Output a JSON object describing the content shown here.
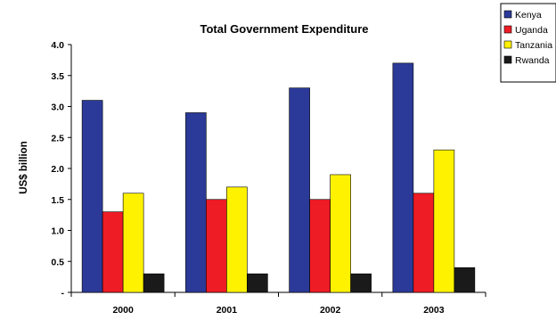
{
  "chart_data": {
    "type": "bar",
    "title": "Total Government Expenditure",
    "xlabel": "",
    "ylabel": "US$ billion",
    "categories": [
      "2000",
      "2001",
      "2002",
      "2003"
    ],
    "series": [
      {
        "name": "Kenya",
        "values": [
          3.1,
          2.9,
          3.3,
          3.7
        ],
        "color": "#2B3A98"
      },
      {
        "name": "Uganda",
        "values": [
          1.3,
          1.5,
          1.5,
          1.6
        ],
        "color": "#EE1C25"
      },
      {
        "name": "Tanzania",
        "values": [
          1.6,
          1.7,
          1.9,
          2.3
        ],
        "color": "#FFF200"
      },
      {
        "name": "Rwanda",
        "values": [
          0.3,
          0.3,
          0.3,
          0.4
        ],
        "color": "#1A1A1A"
      }
    ],
    "ylim": [
      0,
      4.0
    ],
    "yticks": [
      "-",
      "0.5",
      "1.0",
      "1.5",
      "2.0",
      "2.5",
      "3.0",
      "3.5",
      "4.0"
    ],
    "grid": false,
    "legend_position": "top-right"
  }
}
